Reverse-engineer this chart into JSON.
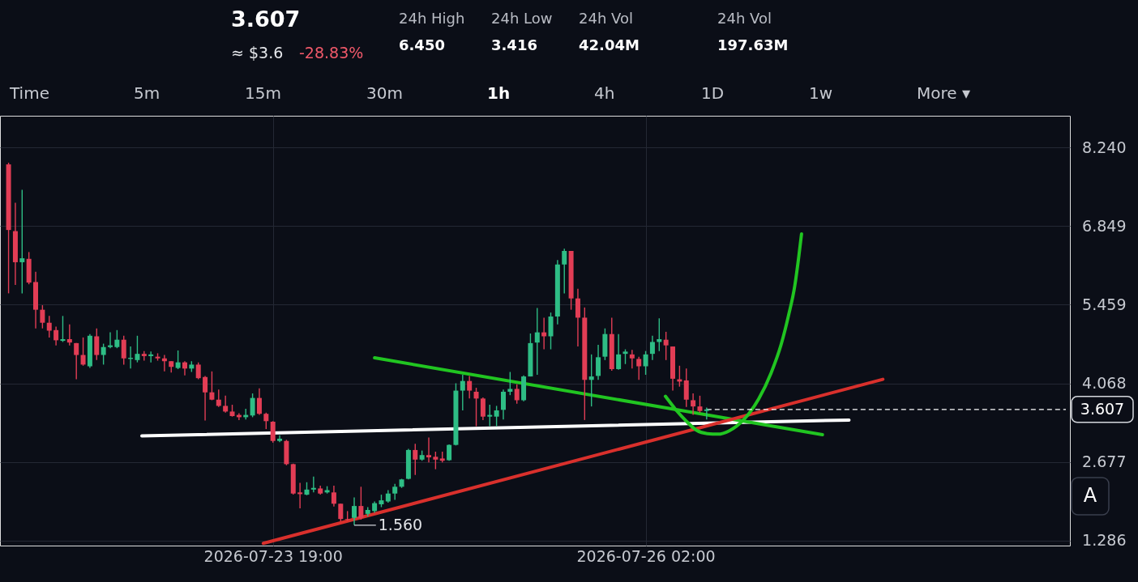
{
  "chart_data": {
    "type": "candlestick",
    "annotations": [
      "3.607",
      "≈ $3.6",
      "-28.83%",
      "24h High",
      "6.450",
      "24h Low",
      "3.416",
      "24h Vol",
      "42.04M",
      "24h Vol",
      "197.63M",
      "Time",
      "5m",
      "15m",
      "30m",
      "1h",
      "4h",
      "1D",
      "1w",
      "More ▾",
      "A",
      {
        "text": "1.560",
        "x": "2026-07-24T07:00",
        "y": 1.56
      }
    ],
    "x": [
      "2026-07-22T04:00",
      "2026-07-22T05:00",
      "2026-07-22T06:00",
      "2026-07-22T07:00",
      "2026-07-22T08:00",
      "2026-07-22T09:00",
      "2026-07-22T10:00",
      "2026-07-22T11:00",
      "2026-07-22T12:00",
      "2026-07-22T13:00",
      "2026-07-22T14:00",
      "2026-07-22T15:00",
      "2026-07-22T16:00",
      "2026-07-22T17:00",
      "2026-07-22T18:00",
      "2026-07-22T19:00",
      "2026-07-22T20:00",
      "2026-07-22T21:00",
      "2026-07-22T22:00",
      "2026-07-22T23:00",
      "2026-07-23T00:00",
      "2026-07-23T01:00",
      "2026-07-23T02:00",
      "2026-07-23T03:00",
      "2026-07-23T04:00",
      "2026-07-23T05:00",
      "2026-07-23T06:00",
      "2026-07-23T07:00",
      "2026-07-23T08:00",
      "2026-07-23T09:00",
      "2026-07-23T10:00",
      "2026-07-23T11:00",
      "2026-07-23T12:00",
      "2026-07-23T13:00",
      "2026-07-23T14:00",
      "2026-07-23T15:00",
      "2026-07-23T16:00",
      "2026-07-23T17:00",
      "2026-07-23T18:00",
      "2026-07-23T19:00",
      "2026-07-23T20:00",
      "2026-07-23T21:00",
      "2026-07-23T22:00",
      "2026-07-23T23:00",
      "2026-07-24T00:00",
      "2026-07-24T01:00",
      "2026-07-24T02:00",
      "2026-07-24T03:00",
      "2026-07-24T04:00",
      "2026-07-24T05:00",
      "2026-07-24T06:00",
      "2026-07-24T07:00",
      "2026-07-24T08:00",
      "2026-07-24T09:00",
      "2026-07-24T10:00",
      "2026-07-24T11:00",
      "2026-07-24T12:00",
      "2026-07-24T13:00",
      "2026-07-24T14:00",
      "2026-07-24T15:00",
      "2026-07-24T16:00",
      "2026-07-24T17:00",
      "2026-07-24T18:00",
      "2026-07-24T19:00",
      "2026-07-24T20:00",
      "2026-07-24T21:00",
      "2026-07-24T22:00",
      "2026-07-24T23:00",
      "2026-07-25T00:00",
      "2026-07-25T01:00",
      "2026-07-25T02:00",
      "2026-07-25T03:00",
      "2026-07-25T04:00",
      "2026-07-25T05:00",
      "2026-07-25T06:00",
      "2026-07-25T07:00",
      "2026-07-25T08:00",
      "2026-07-25T09:00",
      "2026-07-25T10:00",
      "2026-07-25T11:00",
      "2026-07-25T12:00",
      "2026-07-25T13:00",
      "2026-07-25T14:00",
      "2026-07-25T15:00",
      "2026-07-25T16:00",
      "2026-07-25T17:00",
      "2026-07-25T18:00",
      "2026-07-25T19:00",
      "2026-07-25T20:00",
      "2026-07-25T21:00",
      "2026-07-25T22:00",
      "2026-07-25T23:00",
      "2026-07-26T00:00",
      "2026-07-26T01:00",
      "2026-07-26T02:00",
      "2026-07-26T03:00",
      "2026-07-26T04:00",
      "2026-07-26T05:00",
      "2026-07-26T06:00",
      "2026-07-26T07:00",
      "2026-07-26T08:00",
      "2026-07-26T09:00",
      "2026-07-26T10:00",
      "2026-07-26T11:00"
    ],
    "ohlc": [
      [
        7.94,
        7.97,
        5.66,
        6.78
      ],
      [
        6.76,
        7.26,
        5.81,
        6.21
      ],
      [
        6.21,
        7.49,
        5.66,
        6.28
      ],
      [
        6.27,
        6.39,
        5.82,
        5.85
      ],
      [
        5.86,
        6.04,
        5.04,
        5.37
      ],
      [
        5.37,
        5.45,
        5.04,
        5.14
      ],
      [
        5.14,
        5.26,
        4.88,
        5.0
      ],
      [
        5.01,
        5.07,
        4.74,
        4.83
      ],
      [
        4.82,
        5.26,
        4.8,
        4.85
      ],
      [
        4.85,
        5.11,
        4.74,
        4.79
      ],
      [
        4.78,
        4.78,
        4.14,
        4.57
      ],
      [
        4.57,
        4.88,
        4.38,
        4.4
      ],
      [
        4.37,
        4.94,
        4.34,
        4.91
      ],
      [
        4.9,
        5.04,
        4.48,
        4.57
      ],
      [
        4.57,
        4.77,
        4.4,
        4.71
      ],
      [
        4.71,
        4.97,
        4.69,
        4.74
      ],
      [
        4.71,
        5.01,
        4.69,
        4.84
      ],
      [
        4.84,
        4.91,
        4.4,
        4.51
      ],
      [
        4.5,
        4.72,
        4.33,
        4.52
      ],
      [
        4.48,
        4.91,
        4.44,
        4.59
      ],
      [
        4.59,
        4.64,
        4.47,
        4.55
      ],
      [
        4.55,
        4.63,
        4.44,
        4.58
      ],
      [
        4.54,
        4.6,
        4.47,
        4.51
      ],
      [
        4.51,
        4.57,
        4.28,
        4.46
      ],
      [
        4.46,
        4.46,
        4.26,
        4.36
      ],
      [
        4.34,
        4.65,
        4.32,
        4.44
      ],
      [
        4.44,
        4.46,
        4.21,
        4.33
      ],
      [
        4.33,
        4.46,
        4.27,
        4.4
      ],
      [
        4.4,
        4.44,
        4.14,
        4.16
      ],
      [
        4.18,
        4.2,
        3.41,
        3.91
      ],
      [
        3.91,
        4.28,
        3.77,
        3.78
      ],
      [
        3.78,
        3.96,
        3.65,
        3.67
      ],
      [
        3.67,
        3.85,
        3.55,
        3.57
      ],
      [
        3.57,
        3.69,
        3.48,
        3.49
      ],
      [
        3.51,
        3.54,
        3.42,
        3.47
      ],
      [
        3.47,
        3.62,
        3.43,
        3.51
      ],
      [
        3.5,
        3.89,
        3.47,
        3.81
      ],
      [
        3.81,
        3.98,
        3.51,
        3.53
      ],
      [
        3.53,
        3.55,
        3.26,
        3.4
      ],
      [
        3.39,
        3.4,
        3.02,
        3.05
      ],
      [
        3.05,
        3.15,
        3.03,
        3.09
      ],
      [
        3.05,
        3.07,
        2.62,
        2.64
      ],
      [
        2.64,
        2.65,
        2.1,
        2.12
      ],
      [
        2.14,
        2.31,
        1.86,
        2.11
      ],
      [
        2.1,
        2.32,
        2.09,
        2.19
      ],
      [
        2.19,
        2.42,
        2.14,
        2.22
      ],
      [
        2.21,
        2.26,
        2.1,
        2.12
      ],
      [
        2.14,
        2.25,
        2.12,
        2.18
      ],
      [
        2.14,
        2.26,
        1.89,
        1.94
      ],
      [
        1.94,
        1.94,
        1.63,
        1.67
      ],
      [
        1.67,
        1.81,
        1.64,
        1.66
      ],
      [
        1.69,
        2.05,
        1.56,
        1.9
      ],
      [
        1.9,
        2.24,
        1.66,
        1.69
      ],
      [
        1.76,
        1.88,
        1.72,
        1.83
      ],
      [
        1.81,
        1.98,
        1.78,
        1.95
      ],
      [
        1.93,
        2.1,
        1.88,
        2.0
      ],
      [
        1.98,
        2.18,
        1.96,
        2.12
      ],
      [
        2.12,
        2.29,
        2.01,
        2.24
      ],
      [
        2.24,
        2.38,
        2.22,
        2.37
      ],
      [
        2.38,
        2.91,
        2.37,
        2.89
      ],
      [
        2.89,
        3.0,
        2.45,
        2.72
      ],
      [
        2.72,
        2.88,
        2.7,
        2.8
      ],
      [
        2.8,
        3.11,
        2.67,
        2.76
      ],
      [
        2.77,
        2.86,
        2.55,
        2.72
      ],
      [
        2.74,
        2.86,
        2.67,
        2.7
      ],
      [
        2.71,
        2.99,
        2.7,
        2.98
      ],
      [
        2.98,
        4.07,
        2.97,
        3.94
      ],
      [
        3.94,
        4.22,
        3.59,
        4.11
      ],
      [
        4.11,
        4.2,
        3.8,
        3.94
      ],
      [
        3.92,
        3.99,
        3.31,
        3.8
      ],
      [
        3.8,
        3.82,
        3.42,
        3.48
      ],
      [
        3.48,
        3.69,
        3.31,
        3.51
      ],
      [
        3.48,
        3.67,
        3.31,
        3.59
      ],
      [
        3.6,
        3.96,
        3.43,
        3.92
      ],
      [
        3.92,
        4.27,
        3.86,
        3.97
      ],
      [
        3.97,
        4.05,
        3.71,
        3.77
      ],
      [
        3.77,
        4.21,
        3.75,
        4.19
      ],
      [
        4.19,
        4.95,
        4.19,
        4.78
      ],
      [
        4.79,
        5.4,
        4.22,
        4.97
      ],
      [
        4.97,
        5.23,
        4.67,
        4.9
      ],
      [
        4.9,
        5.32,
        4.67,
        5.25
      ],
      [
        5.25,
        6.25,
        5.11,
        6.17
      ],
      [
        6.17,
        6.45,
        5.66,
        6.41
      ],
      [
        6.41,
        6.41,
        5.37,
        5.57
      ],
      [
        5.57,
        5.74,
        4.72,
        5.23
      ],
      [
        5.23,
        5.41,
        3.42,
        4.13
      ],
      [
        4.13,
        4.58,
        3.66,
        4.19
      ],
      [
        4.2,
        4.75,
        4.13,
        4.53
      ],
      [
        4.54,
        5.04,
        4.48,
        4.94
      ],
      [
        4.94,
        5.23,
        4.29,
        4.32
      ],
      [
        4.32,
        4.94,
        4.31,
        4.58
      ],
      [
        4.59,
        4.67,
        4.41,
        4.63
      ],
      [
        4.58,
        4.66,
        4.33,
        4.51
      ],
      [
        4.5,
        4.54,
        4.13,
        4.37
      ],
      [
        4.37,
        4.64,
        4.22,
        4.58
      ],
      [
        4.59,
        4.91,
        4.48,
        4.8
      ],
      [
        4.8,
        5.22,
        4.64,
        4.85
      ],
      [
        4.84,
        4.98,
        4.48,
        4.74
      ],
      [
        4.72,
        4.72,
        3.94,
        4.15
      ],
      [
        4.14,
        4.38,
        4.01,
        4.1
      ],
      [
        4.12,
        4.33,
        3.65,
        3.78
      ],
      [
        3.77,
        3.89,
        3.51,
        3.66
      ],
      [
        3.66,
        3.85,
        3.55,
        3.58
      ],
      [
        3.58,
        3.64,
        3.43,
        3.607
      ]
    ],
    "colors": [
      "#e23d55",
      "#e23d55",
      "#2ebd85",
      "#e23d55",
      "#e23d55",
      "#e23d55",
      "#e23d55",
      "#e23d55",
      "#2ebd85",
      "#e23d55",
      "#e23d55",
      "#e23d55",
      "#2ebd85",
      "#e23d55",
      "#2ebd85",
      "#2ebd85",
      "#2ebd85",
      "#e23d55",
      "#2ebd85",
      "#2ebd85",
      "#e23d55",
      "#2ebd85",
      "#e23d55",
      "#e23d55",
      "#e23d55",
      "#2ebd85",
      "#e23d55",
      "#2ebd85",
      "#e23d55",
      "#e23d55",
      "#e23d55",
      "#e23d55",
      "#e23d55",
      "#e23d55",
      "#e23d55",
      "#2ebd85",
      "#2ebd85",
      "#e23d55",
      "#e23d55",
      "#e23d55",
      "#2ebd85",
      "#e23d55",
      "#e23d55",
      "#e23d55",
      "#2ebd85",
      "#2ebd85",
      "#e23d55",
      "#2ebd85",
      "#e23d55",
      "#e23d55",
      "#e23d55",
      "#2ebd85",
      "#e23d55",
      "#2ebd85",
      "#2ebd85",
      "#2ebd85",
      "#2ebd85",
      "#2ebd85",
      "#2ebd85",
      "#2ebd85",
      "#e23d55",
      "#2ebd85",
      "#e23d55",
      "#e23d55",
      "#e23d55",
      "#2ebd85",
      "#2ebd85",
      "#2ebd85",
      "#e23d55",
      "#e23d55",
      "#e23d55",
      "#2ebd85",
      "#2ebd85",
      "#2ebd85",
      "#2ebd85",
      "#e23d55",
      "#2ebd85",
      "#2ebd85",
      "#2ebd85",
      "#e23d55",
      "#2ebd85",
      "#2ebd85",
      "#2ebd85",
      "#e23d55",
      "#e23d55",
      "#e23d55",
      "#2ebd85",
      "#2ebd85",
      "#2ebd85",
      "#e23d55",
      "#2ebd85",
      "#2ebd85",
      "#e23d55",
      "#e23d55",
      "#2ebd85",
      "#2ebd85",
      "#2ebd85",
      "#e23d55",
      "#e23d55",
      "#e23d55",
      "#e23d55",
      "#e23d55",
      "#e23d55",
      "#2ebd85"
    ],
    "series": [
      {
        "type": "line",
        "color": "#ffffff",
        "x": [
          "2026-07-22T23:40",
          "2026-07-27T08:00"
        ],
        "values": [
          3.14,
          3.42
        ]
      },
      {
        "type": "line",
        "color": "#21c521",
        "x": [
          "2026-07-24T10:00",
          "2026-07-27T04:05"
        ],
        "values": [
          4.52,
          3.16
        ]
      },
      {
        "type": "line",
        "color": "#d9302c",
        "x": [
          "2026-07-23T17:35",
          "2026-07-27T13:00"
        ],
        "values": [
          1.24,
          4.14
        ]
      },
      {
        "type": "line",
        "color": "#21c521",
        "x": [
          "2026-07-26T04:55",
          "2026-07-26T06:20",
          "2026-07-26T07:55",
          "2026-07-26T09:30",
          "2026-07-26T11:05",
          "2026-07-26T12:40",
          "2026-07-26T14:20",
          "2026-07-26T16:30",
          "2026-07-26T18:40",
          "2026-07-26T20:30",
          "2026-07-26T22:00",
          "2026-07-26T23:05",
          "2026-07-27T00:00",
          "2026-07-27T00:35",
          "2026-07-27T01:00"
        ],
        "values": [
          3.84,
          3.62,
          3.41,
          3.24,
          3.18,
          3.17,
          3.23,
          3.43,
          3.79,
          4.25,
          4.76,
          5.27,
          5.79,
          6.3,
          6.71
        ]
      }
    ],
    "ref_lines": [
      {
        "axis": "y",
        "value": 3.607,
        "label": "3.607",
        "color": "#ffffff",
        "line_style": "dashed"
      }
    ],
    "xlim": [
      "2026-07-22T03:20",
      "2026-07-28T16:00"
    ],
    "ylim": [
      1.2,
      8.8
    ],
    "xticks": [
      {
        "value": "2026-07-23T19:00",
        "label": "2026-07-23 19:00"
      },
      {
        "value": "2026-07-26T02:00",
        "label": "2026-07-26 02:00"
      }
    ],
    "yticks": [
      {
        "value": 1.286,
        "label": "1.286"
      },
      {
        "value": 2.677,
        "label": "2.677"
      },
      {
        "value": 4.068,
        "label": "4.068"
      },
      {
        "value": 5.459,
        "label": "5.459"
      },
      {
        "value": 6.849,
        "label": "6.849"
      },
      {
        "value": 8.24,
        "label": "8.240"
      }
    ],
    "grid": true
  }
}
